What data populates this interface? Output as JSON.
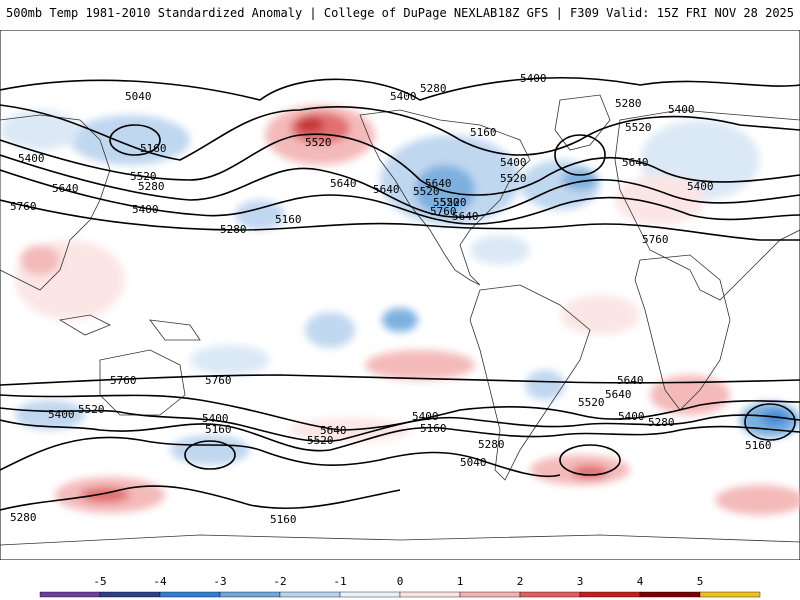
{
  "header": {
    "left_title": "500mb Temp 1981-2010 Standardized Anomaly | College of DuPage NEXLAB",
    "right_title": "18Z GFS | F309 Valid: 15Z FRI NOV 28 2025"
  },
  "contour_labels": [
    {
      "text": "5040"
    },
    {
      "text": "5160"
    },
    {
      "text": "5280"
    },
    {
      "text": "5400"
    },
    {
      "text": "5520"
    },
    {
      "text": "5640"
    },
    {
      "text": "5760"
    },
    {
      "text": "5400"
    },
    {
      "text": "5160"
    },
    {
      "text": "5280"
    },
    {
      "text": "5520"
    },
    {
      "text": "5640"
    },
    {
      "text": "5760"
    },
    {
      "text": "5640"
    },
    {
      "text": "5520"
    },
    {
      "text": "5400"
    },
    {
      "text": "5160"
    },
    {
      "text": "5280"
    },
    {
      "text": "5400"
    },
    {
      "text": "5520"
    },
    {
      "text": "5640"
    },
    {
      "text": "5400"
    },
    {
      "text": "5520"
    },
    {
      "text": "5760"
    },
    {
      "text": "5640"
    },
    {
      "text": "5520"
    },
    {
      "text": "5280"
    },
    {
      "text": "5400"
    },
    {
      "text": "5760"
    },
    {
      "text": "5640"
    },
    {
      "text": "5520"
    },
    {
      "text": "5400"
    },
    {
      "text": "5160"
    },
    {
      "text": "5760"
    },
    {
      "text": "5640"
    },
    {
      "text": "5400"
    },
    {
      "text": "5520"
    },
    {
      "text": "5400"
    },
    {
      "text": "5160"
    },
    {
      "text": "5280"
    },
    {
      "text": "5040"
    },
    {
      "text": "5640"
    },
    {
      "text": "5520"
    },
    {
      "text": "5400"
    },
    {
      "text": "5280"
    },
    {
      "text": "5160"
    },
    {
      "text": "5280"
    },
    {
      "text": "5160"
    },
    {
      "text": "5400"
    },
    {
      "text": "5520"
    },
    {
      "text": "5640"
    }
  ],
  "colorbar": {
    "ticks": [
      "-5",
      "-4",
      "-3",
      "-2",
      "-1",
      "0",
      "1",
      "2",
      "3",
      "4",
      "5"
    ],
    "colors": [
      "#6b3fa0",
      "#2e3f8f",
      "#2f7fd0",
      "#6fa8dc",
      "#b9d3ee",
      "#e8f0fa",
      "#fbe3e3",
      "#f3b3b3",
      "#e06060",
      "#c02020",
      "#7a0000",
      "#f0c020"
    ]
  }
}
